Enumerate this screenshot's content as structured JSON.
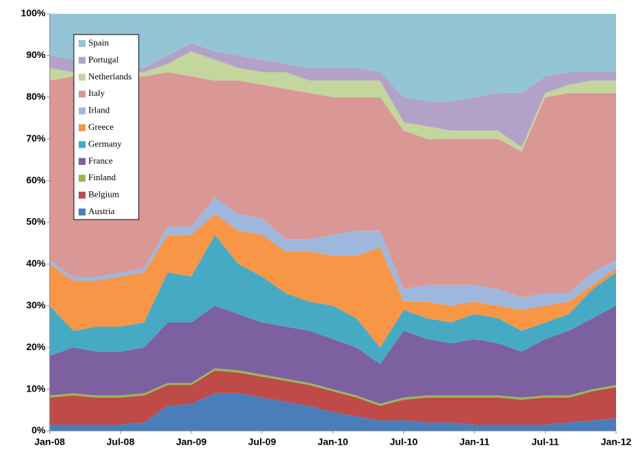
{
  "chart_data": {
    "type": "stacked-area",
    "categories": [
      "Jan-08",
      null,
      null,
      "Jul-08",
      null,
      null,
      "Jan-09",
      null,
      null,
      "Jul-09",
      null,
      null,
      "Jan-10",
      null,
      null,
      "Jul-10",
      null,
      null,
      "Jan-11",
      null,
      null,
      "Jul-11",
      null,
      null,
      "Jan-12"
    ],
    "ylim": [
      0,
      100
    ],
    "yticks": [
      {
        "value": 0,
        "label": "0%"
      },
      {
        "value": 10,
        "label": "10%"
      },
      {
        "value": 20,
        "label": "20%"
      },
      {
        "value": 30,
        "label": "30%"
      },
      {
        "value": 40,
        "label": "40%"
      },
      {
        "value": 50,
        "label": "50%"
      },
      {
        "value": 60,
        "label": "60%"
      },
      {
        "value": 70,
        "label": "70%"
      },
      {
        "value": 80,
        "label": "80%"
      },
      {
        "value": 90,
        "label": "90%"
      },
      {
        "value": 100,
        "label": "100%"
      }
    ],
    "grid": false,
    "legend": "upper left",
    "series": [
      {
        "name": "Austria",
        "color": "#4a7ebb",
        "values": [
          1.5,
          1.5,
          1.5,
          1.5,
          2,
          6,
          6.5,
          9,
          9,
          8,
          7,
          6,
          4.5,
          3.5,
          2.5,
          2.5,
          2,
          2,
          1.5,
          1.5,
          1.5,
          1.5,
          2,
          2.5,
          3
        ]
      },
      {
        "name": "Belgium",
        "color": "#be4b48",
        "values": [
          6.5,
          7,
          6.5,
          6.5,
          6.5,
          5,
          4.5,
          5.5,
          5,
          5,
          5,
          5,
          5,
          4.5,
          3.5,
          5,
          6,
          6,
          6.5,
          6.5,
          6,
          6.5,
          6,
          7,
          7.5
        ]
      },
      {
        "name": "Finland",
        "color": "#98b954",
        "values": [
          0.5,
          0.5,
          0.5,
          0.5,
          0.5,
          0.5,
          0.5,
          0.5,
          0.5,
          0.5,
          0.5,
          0.5,
          0.5,
          0.5,
          0.5,
          0.5,
          0.5,
          0.5,
          0.5,
          0.5,
          0.5,
          0.5,
          0.5,
          0.5,
          0.5
        ]
      },
      {
        "name": "France",
        "color": "#7d60a0",
        "values": [
          9.5,
          11,
          10.5,
          10.5,
          11,
          14.5,
          14.5,
          15,
          13.5,
          12.5,
          12.5,
          12.5,
          12,
          11.5,
          9.5,
          16,
          13.5,
          12.5,
          13.5,
          12.5,
          11,
          13.5,
          15.5,
          17,
          19
        ]
      },
      {
        "name": "Germany",
        "color": "#46aac5",
        "values": [
          12,
          4,
          6,
          6,
          6,
          12,
          11,
          17,
          12,
          11,
          8,
          7,
          8,
          7,
          4,
          5,
          5,
          5,
          6,
          6,
          5,
          4,
          4,
          7,
          8
        ]
      },
      {
        "name": "Greece",
        "color": "#f79646",
        "values": [
          10,
          12,
          11,
          12,
          12,
          9,
          10,
          5,
          8,
          10,
          10,
          12,
          12,
          15,
          24,
          2,
          4,
          4,
          3,
          3,
          5,
          4,
          3,
          1,
          1
        ]
      },
      {
        "name": "Irland",
        "color": "#9fb7dc",
        "values": [
          1,
          1,
          1,
          1,
          1,
          2,
          2,
          4,
          4,
          4,
          3,
          3,
          5,
          6,
          4,
          3,
          4,
          5,
          4,
          4,
          3,
          3,
          2,
          3,
          2
        ]
      },
      {
        "name": "Italy",
        "color": "#d99795",
        "values": [
          43,
          48,
          48,
          47,
          46,
          37,
          36,
          28,
          32,
          32,
          36,
          35,
          33,
          32,
          32,
          38,
          35,
          35,
          35,
          36,
          35,
          47,
          48,
          43,
          40
        ]
      },
      {
        "name": "Netherlands",
        "color": "#c3d69b",
        "values": [
          3,
          1,
          1,
          1,
          1,
          2,
          6,
          5,
          3,
          3,
          4,
          3,
          4,
          4,
          4,
          2,
          3,
          2,
          2,
          2,
          1,
          1,
          2,
          3,
          3
        ]
      },
      {
        "name": "Portugal",
        "color": "#b3a2c7",
        "values": [
          3,
          3,
          2,
          2,
          1,
          2,
          2,
          2,
          3,
          3,
          2,
          3,
          3,
          3,
          2,
          6,
          6,
          7,
          8,
          9,
          13,
          4,
          3,
          2,
          2
        ]
      },
      {
        "name": "Spain",
        "color": "#93c5d6",
        "values": [
          10,
          11,
          12,
          12,
          13,
          10,
          7,
          9,
          10,
          11,
          12,
          13,
          13,
          13,
          14,
          20,
          21,
          21,
          20,
          19,
          19,
          15,
          14,
          14,
          14
        ]
      }
    ]
  }
}
